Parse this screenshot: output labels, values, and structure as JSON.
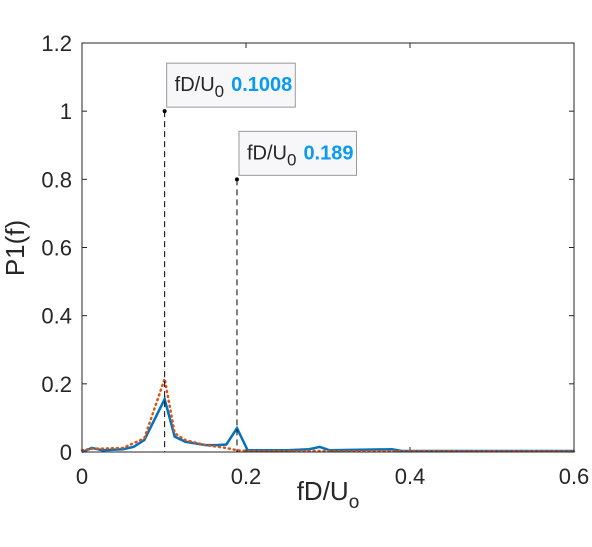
{
  "chart_data": {
    "type": "line",
    "x_label": "fD/U",
    "x_label_sub": "o",
    "y_label": "P1(f)",
    "series": [
      {
        "color": "#0072BD",
        "style": "solid",
        "x": [
          0,
          0.012,
          0.025,
          0.05,
          0.063,
          0.076,
          0.1008,
          0.113,
          0.126,
          0.139,
          0.151,
          0.164,
          0.176,
          0.189,
          0.202,
          0.25,
          0.277,
          0.29,
          0.302,
          0.378,
          0.39,
          0.6
        ],
        "values": [
          0,
          0.012,
          0.005,
          0.008,
          0.015,
          0.035,
          0.155,
          0.045,
          0.03,
          0.025,
          0.02,
          0.02,
          0.022,
          0.07,
          0.005,
          0.005,
          0.008,
          0.015,
          0.005,
          0.008,
          0.003,
          0.003
        ]
      },
      {
        "color": "#D95319",
        "style": "dotted",
        "x": [
          0,
          0.012,
          0.025,
          0.05,
          0.076,
          0.1008,
          0.113,
          0.126,
          0.151,
          0.176,
          0.189,
          0.202,
          0.6
        ],
        "values": [
          0.005,
          0.01,
          0.01,
          0.012,
          0.04,
          0.215,
          0.055,
          0.035,
          0.02,
          0.012,
          0.005,
          0.003,
          0.002
        ]
      }
    ],
    "annotations": [
      {
        "label": "fD/U",
        "label_sub": "0",
        "x": 0.1008,
        "y": 1
      },
      {
        "label": "fD/U",
        "label_sub": "0",
        "x": 0.189,
        "y": 0.8
      }
    ],
    "xlim": [
      0,
      0.6
    ],
    "xticks": [
      0,
      0.2,
      0.4,
      0.6
    ],
    "ylim": [
      0,
      1.2
    ],
    "yticks": [
      0,
      0.2,
      0.4,
      0.6,
      0.8,
      1,
      1.2
    ]
  }
}
